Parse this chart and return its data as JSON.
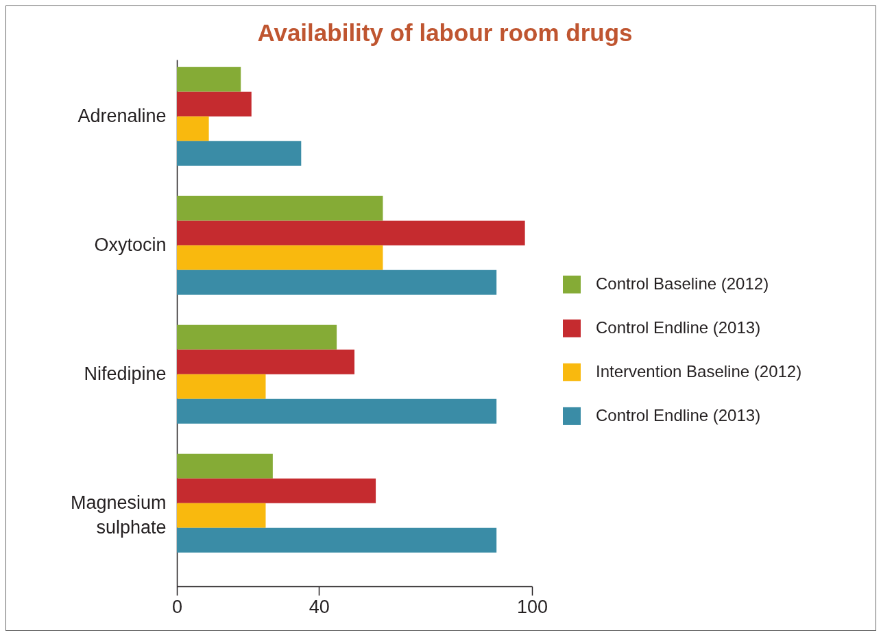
{
  "chart_data": {
    "type": "bar",
    "orientation": "horizontal",
    "title": "Availability of labour room drugs",
    "categories": [
      "Adrenaline",
      "Oxytocin",
      "Nifedipine",
      "Magnesium sulphate"
    ],
    "series": [
      {
        "name": "Control Baseline (2012)",
        "color": "#85ab36",
        "values": [
          18,
          58,
          45,
          27
        ]
      },
      {
        "name": "Control Endline (2013)",
        "color": "#c52b2f",
        "values": [
          21,
          98,
          50,
          56
        ]
      },
      {
        "name": "Intervention Baseline (2012)",
        "color": "#f9b90e",
        "values": [
          9,
          58,
          25,
          25
        ]
      },
      {
        "name": "Control Endline (2013)",
        "color": "#3a8ca6",
        "values": [
          35,
          90,
          90,
          90
        ]
      }
    ],
    "xlim": [
      0,
      100
    ],
    "xticks": [
      0,
      40,
      100
    ],
    "legend": "right"
  }
}
